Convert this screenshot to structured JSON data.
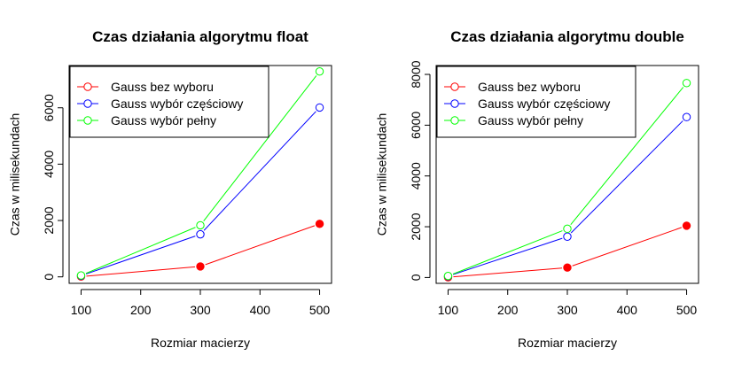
{
  "chart_data": [
    {
      "type": "line",
      "title": "Czas działania algorytmu float",
      "xlabel": "Rozmiar macierzy",
      "ylabel": "Czas w milisekundach",
      "xlim": [
        80,
        520
      ],
      "ylim": [
        -230,
        7500
      ],
      "xticks": [
        100,
        200,
        300,
        400,
        500
      ],
      "yticks": [
        0,
        2000,
        4000,
        6000
      ],
      "x": [
        100,
        300,
        500
      ],
      "legend_position": "top-left",
      "series": [
        {
          "name": "Gauss bez wyboru",
          "color": "#ff0000",
          "values": [
            10,
            370,
            1880
          ]
        },
        {
          "name": "Gauss wybór częściowy",
          "color": "#0000ff",
          "values": [
            40,
            1510,
            6010
          ]
        },
        {
          "name": "Gauss wybór pełny",
          "color": "#00ff00",
          "values": [
            50,
            1830,
            7290
          ]
        }
      ]
    },
    {
      "type": "line",
      "title": "Czas działania algorytmu double",
      "xlabel": "Rozmiar macierzy",
      "ylabel": "Czas w milisekundach",
      "xlim": [
        80,
        520
      ],
      "ylim": [
        -230,
        8350
      ],
      "xticks": [
        100,
        200,
        300,
        400,
        500
      ],
      "yticks": [
        0,
        2000,
        4000,
        6000,
        8000
      ],
      "x": [
        100,
        300,
        500
      ],
      "legend_position": "top-left",
      "series": [
        {
          "name": "Gauss bez wyboru",
          "color": "#ff0000",
          "values": [
            10,
            390,
            2040
          ]
        },
        {
          "name": "Gauss wybór częściowy",
          "color": "#0000ff",
          "values": [
            50,
            1610,
            6320
          ]
        },
        {
          "name": "Gauss wybór pełny",
          "color": "#00ff00",
          "values": [
            60,
            1920,
            7660
          ]
        }
      ]
    }
  ]
}
